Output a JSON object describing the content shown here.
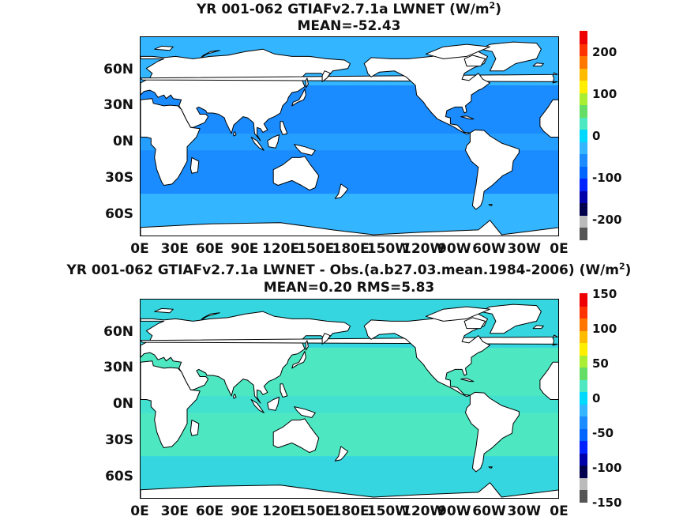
{
  "panels": [
    {
      "title_line1": "YR 001-062 GTIAFv2.7.1a  LWNET (W/m",
      "title_sup": "2",
      "title_close": ")",
      "title_line2": "MEAN=-52.43",
      "ocean_color": "#1a8cff",
      "ocean_band_color": "#33b5ff",
      "colorbar": {
        "ticks": [
          "200",
          "100",
          "0",
          "-100",
          "-200"
        ],
        "range": [
          -250,
          250
        ]
      }
    },
    {
      "title_line1": "YR 001-062 GTIAFv2.7.1a LWNET - Obs.(a.b27.03.mean.1984-2006) (W/m",
      "title_sup": "2",
      "title_close": ")",
      "title_line2": "MEAN=0.20 RMS=5.83",
      "ocean_color": "#4de8c2",
      "ocean_band_color": "#36d6e0",
      "colorbar": {
        "ticks": [
          "150",
          "100",
          "50",
          "0",
          "-50",
          "-100",
          "-150"
        ],
        "range": [
          -150,
          150
        ]
      }
    }
  ],
  "lat_labels": [
    "60N",
    "30N",
    "0N",
    "30S",
    "60S"
  ],
  "lon_labels": [
    "0E",
    "30E",
    "60E",
    "90E",
    "120E",
    "150E",
    "180E",
    "150W",
    "120W",
    "90W",
    "60W",
    "30W",
    "0E"
  ],
  "colormap": [
    "#555555",
    "#bbbbbb",
    "#00004d",
    "#0000aa",
    "#0022ff",
    "#0066ff",
    "#1a8cff",
    "#33b5ff",
    "#00d9ff",
    "#4de8c2",
    "#66dd66",
    "#aaee33",
    "#ffee00",
    "#ffbb00",
    "#ff7700",
    "#ff3300",
    "#ee0000"
  ]
}
